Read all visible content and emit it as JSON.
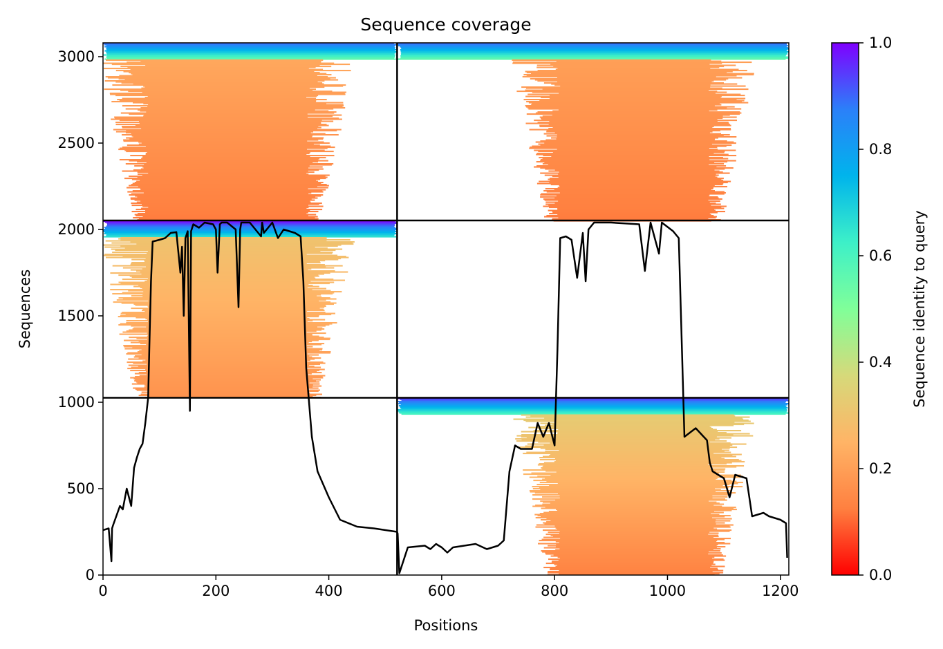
{
  "chart_data": {
    "type": "heatmap",
    "title": "Sequence coverage",
    "xlabel": "Positions",
    "ylabel": "Sequences",
    "xlim": [
      0,
      1215
    ],
    "ylim": [
      0,
      3080
    ],
    "xticks": [
      0,
      200,
      400,
      600,
      800,
      1000,
      1200
    ],
    "yticks": [
      0,
      500,
      1000,
      1500,
      2000,
      2500,
      3000
    ],
    "colorbar": {
      "label": "Sequence identity to query",
      "range": [
        0.0,
        1.0
      ],
      "ticks": [
        "0.0",
        "0.2",
        "0.4",
        "0.6",
        "0.8",
        "1.0"
      ],
      "colormap": [
        "#ff0000",
        "#ff8040",
        "#ffb466",
        "#d6d97a",
        "#80ff99",
        "#3df0c8",
        "#00b4ec",
        "#2b80f9",
        "#7f00ff"
      ]
    },
    "dividers": {
      "vertical_x": [
        521
      ],
      "horizontal_y": [
        1026,
        2052
      ]
    },
    "blocks": [
      {
        "name": "chain-A-depth-3",
        "x": [
          0,
          521
        ],
        "y": [
          2052,
          3080
        ],
        "top_identity": 0.55,
        "body_identity_top": 0.22,
        "body_identity_bottom": 0.12,
        "core_x": [
          80,
          360
        ]
      },
      {
        "name": "chain-B-depth-3",
        "x": [
          521,
          1215
        ],
        "y": [
          2052,
          3080
        ],
        "top_identity": 0.55,
        "body_identity_top": 0.2,
        "body_identity_bottom": 0.12,
        "core_x": [
          810,
          1072
        ]
      },
      {
        "name": "chain-A-depth-2",
        "x": [
          0,
          521
        ],
        "y": [
          1026,
          2052
        ],
        "top_identity": 0.65,
        "body_identity_top": 0.3,
        "body_identity_bottom": 0.17,
        "core_x": [
          80,
          360
        ]
      },
      {
        "name": "chain-B-depth-1",
        "x": [
          521,
          1215
        ],
        "y": [
          0,
          1026
        ],
        "top_identity": 0.6,
        "body_identity_top": 0.33,
        "body_identity_bottom": 0.13,
        "core_x": [
          810,
          1072
        ]
      }
    ],
    "coverage_line": {
      "color": "#000000",
      "x": [
        0,
        10,
        15,
        16,
        18,
        30,
        35,
        42,
        50,
        55,
        60,
        65,
        70,
        75,
        80,
        82,
        85,
        88,
        100,
        110,
        120,
        130,
        137,
        140,
        143,
        146,
        150,
        154,
        156,
        160,
        170,
        180,
        195,
        200,
        203,
        207,
        210,
        220,
        235,
        240,
        243,
        245,
        250,
        260,
        280,
        282,
        285,
        300,
        310,
        320,
        340,
        350,
        355,
        360,
        370,
        380,
        400,
        420,
        450,
        480,
        521,
        522,
        525,
        540,
        570,
        580,
        590,
        600,
        610,
        620,
        640,
        660,
        680,
        700,
        710,
        720,
        730,
        740,
        760,
        770,
        780,
        790,
        800,
        805,
        810,
        820,
        830,
        840,
        850,
        855,
        860,
        870,
        890,
        900,
        950,
        960,
        970,
        980,
        985,
        990,
        1010,
        1020,
        1030,
        1050,
        1070,
        1075,
        1080,
        1090,
        1100,
        1110,
        1120,
        1130,
        1140,
        1150,
        1170,
        1180,
        1190,
        1200,
        1210,
        1212
      ],
      "y": [
        260,
        270,
        80,
        270,
        290,
        400,
        380,
        500,
        400,
        620,
        680,
        730,
        760,
        880,
        1026,
        1300,
        1700,
        1930,
        1940,
        1950,
        1980,
        1985,
        1750,
        1900,
        1500,
        1950,
        1990,
        950,
        1990,
        2030,
        2010,
        2040,
        2030,
        2000,
        1750,
        2030,
        2040,
        2040,
        2000,
        1550,
        2000,
        2040,
        2040,
        2040,
        1960,
        2040,
        1980,
        2040,
        1950,
        2000,
        1980,
        1960,
        1700,
        1200,
        800,
        600,
        450,
        320,
        280,
        270,
        250,
        240,
        10,
        160,
        170,
        150,
        180,
        160,
        130,
        160,
        170,
        180,
        150,
        170,
        200,
        600,
        750,
        730,
        730,
        880,
        800,
        880,
        750,
        1300,
        1950,
        1960,
        1940,
        1720,
        1980,
        1700,
        2000,
        2040,
        2040,
        2040,
        2030,
        1760,
        2040,
        1920,
        1860,
        2040,
        1990,
        1950,
        800,
        850,
        780,
        650,
        600,
        580,
        560,
        450,
        580,
        570,
        560,
        340,
        360,
        340,
        330,
        320,
        300,
        100
      ]
    }
  }
}
